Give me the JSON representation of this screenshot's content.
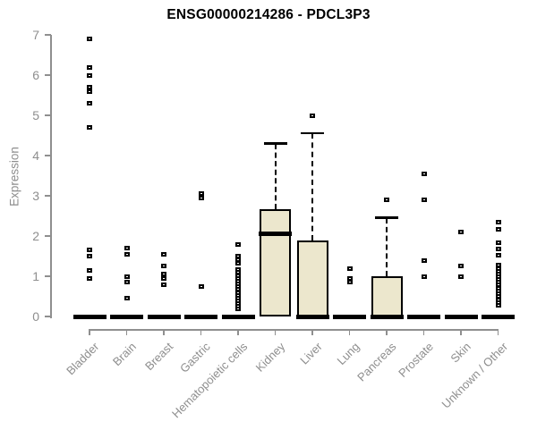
{
  "chart_data": {
    "type": "box",
    "title": "ENSG00000214286 - PDCL3P3",
    "ylabel": "Expression",
    "xlabel": "",
    "ylim": [
      0,
      7
    ],
    "yticks": [
      0,
      1,
      2,
      3,
      4,
      5,
      6,
      7
    ],
    "grid": false,
    "legend": false,
    "box_fill": "#ece7cd",
    "box_border": "#000000",
    "axis_color": "#8f8f8f",
    "label_color": "#8e8e8e",
    "title_color": "#000000",
    "categories": [
      "Bladder",
      "Brain",
      "Breast",
      "Gastric",
      "Hematopoietic cells",
      "Kidney",
      "Liver",
      "Lung",
      "Pancreas",
      "Prostate",
      "Skin",
      "Unknown / Other"
    ],
    "series": [
      {
        "name": "Bladder",
        "q1": 0,
        "median": 0,
        "q3": 0,
        "whisker_low": 0,
        "whisker_high": 0,
        "outliers": [
          6.9,
          6.2,
          6.0,
          5.7,
          5.6,
          5.3,
          4.7,
          1.65,
          1.5,
          1.15,
          0.95
        ]
      },
      {
        "name": "Brain",
        "q1": 0,
        "median": 0,
        "q3": 0,
        "whisker_low": 0,
        "whisker_high": 0,
        "outliers": [
          1.7,
          1.55,
          1.0,
          0.85,
          0.45
        ]
      },
      {
        "name": "Breast",
        "q1": 0,
        "median": 0,
        "q3": 0,
        "whisker_low": 0,
        "whisker_high": 0,
        "outliers": [
          1.55,
          1.25,
          1.05,
          0.95,
          0.8
        ]
      },
      {
        "name": "Gastric",
        "q1": 0,
        "median": 0,
        "q3": 0,
        "whisker_low": 0,
        "whisker_high": 0,
        "outliers": [
          3.05,
          2.95,
          0.75
        ]
      },
      {
        "name": "Hematopoietic cells",
        "q1": 0,
        "median": 0,
        "q3": 0,
        "whisker_low": 0,
        "whisker_high": 0,
        "outliers": [
          1.8,
          1.5,
          1.42,
          1.33,
          1.16,
          1.09,
          1.02,
          0.95,
          0.88,
          0.81,
          0.74,
          0.67,
          0.6,
          0.53,
          0.46,
          0.39,
          0.32,
          0.25,
          0.18
        ]
      },
      {
        "name": "Kidney",
        "q1": 0,
        "median": 2.05,
        "q3": 2.67,
        "whisker_low": 0,
        "whisker_high": 4.3,
        "outliers": []
      },
      {
        "name": "Liver",
        "q1": 0,
        "median": 0,
        "q3": 1.9,
        "whisker_low": 0,
        "whisker_high": 4.55,
        "outliers": [
          5.0
        ]
      },
      {
        "name": "Lung",
        "q1": 0,
        "median": 0,
        "q3": 0,
        "whisker_low": 0,
        "whisker_high": 0,
        "outliers": [
          1.2,
          0.95,
          0.85
        ]
      },
      {
        "name": "Pancreas",
        "q1": 0,
        "median": 0,
        "q3": 1.0,
        "whisker_low": 0,
        "whisker_high": 2.45,
        "outliers": [
          2.9
        ]
      },
      {
        "name": "Prostate",
        "q1": 0,
        "median": 0,
        "q3": 0,
        "whisker_low": 0,
        "whisker_high": 0,
        "outliers": [
          3.55,
          2.9,
          1.4,
          1.0
        ]
      },
      {
        "name": "Skin",
        "q1": 0,
        "median": 0,
        "q3": 0,
        "whisker_low": 0,
        "whisker_high": 0,
        "outliers": [
          2.1,
          1.25,
          1.0
        ]
      },
      {
        "name": "Unknown / Other",
        "q1": 0,
        "median": 0,
        "q3": 0,
        "whisker_low": 0,
        "whisker_high": 0,
        "outliers": [
          2.35,
          2.17,
          1.83,
          1.68,
          1.53,
          1.27,
          1.2,
          1.13,
          1.06,
          0.99,
          0.92,
          0.85,
          0.78,
          0.71,
          0.64,
          0.57,
          0.5,
          0.42,
          0.35,
          0.28
        ]
      }
    ]
  }
}
